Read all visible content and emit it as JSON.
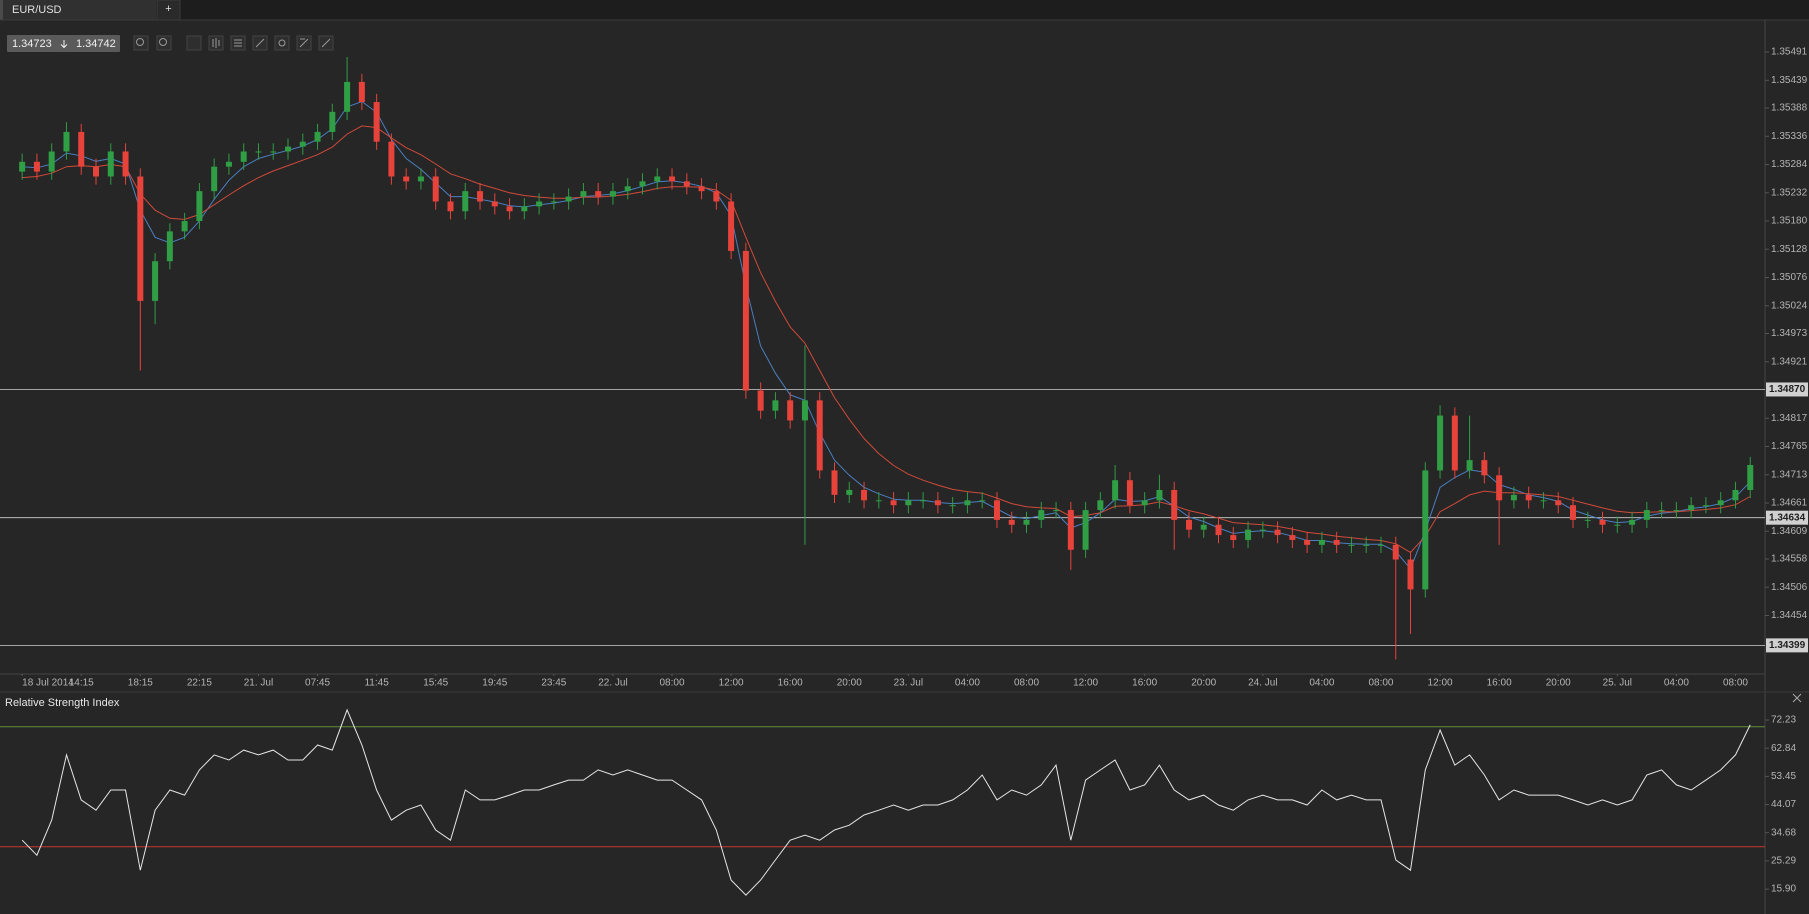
{
  "tab": {
    "symbol": "EUR/USD",
    "add": "+"
  },
  "quote": {
    "bid": "1.34723",
    "ask": "1.34742"
  },
  "chart_data": [
    {
      "type": "candlestick",
      "up_color": "#2f9e44",
      "down_color": "#e8433b",
      "xlim": [
        -1.5,
        118
      ],
      "ylim": [
        1.3435,
        1.3555
      ],
      "xticks": [
        {
          "value": 0,
          "label": "18 Jul 2014"
        },
        {
          "value": 4,
          "label": "14:15"
        },
        {
          "value": 8,
          "label": "18:15"
        },
        {
          "value": 12,
          "label": "22:15"
        },
        {
          "value": 16,
          "label": "21. Jul"
        },
        {
          "value": 20,
          "label": "07:45"
        },
        {
          "value": 24,
          "label": "11:45"
        },
        {
          "value": 28,
          "label": "15:45"
        },
        {
          "value": 32,
          "label": "19:45"
        },
        {
          "value": 36,
          "label": "23:45"
        },
        {
          "value": 40,
          "label": "22. Jul"
        },
        {
          "value": 44,
          "label": "08:00"
        },
        {
          "value": 48,
          "label": "12:00"
        },
        {
          "value": 52,
          "label": "16:00"
        },
        {
          "value": 56,
          "label": "20:00"
        },
        {
          "value": 60,
          "label": "23. Jul"
        },
        {
          "value": 64,
          "label": "04:00"
        },
        {
          "value": 68,
          "label": "08:00"
        },
        {
          "value": 72,
          "label": "12:00"
        },
        {
          "value": 76,
          "label": "16:00"
        },
        {
          "value": 80,
          "label": "20:00"
        },
        {
          "value": 84,
          "label": "24. Jul"
        },
        {
          "value": 88,
          "label": "04:00"
        },
        {
          "value": 92,
          "label": "08:00"
        },
        {
          "value": 96,
          "label": "12:00"
        },
        {
          "value": 100,
          "label": "16:00"
        },
        {
          "value": 104,
          "label": "20:00"
        },
        {
          "value": 108,
          "label": "25. Jul"
        },
        {
          "value": 112,
          "label": "04:00"
        },
        {
          "value": 116,
          "label": "08:00"
        }
      ],
      "yticks": [
        1.35491,
        1.35439,
        1.35388,
        1.35336,
        1.35284,
        1.35232,
        {
          "value": 1.3518,
          "label": "1.35180"
        },
        1.35128,
        1.35076,
        1.35024,
        1.34973,
        1.34921,
        1.34817,
        1.34765,
        1.34713,
        1.34661,
        1.34609,
        1.34558,
        1.34506,
        1.34454
      ],
      "levels": [
        {
          "value": 1.3487,
          "label": "1.34870"
        },
        1.34634,
        1.34399
      ],
      "open": [
        1.35271,
        1.35289,
        1.35271,
        1.35308,
        1.35344,
        1.3528,
        1.35262,
        1.35308,
        1.35262,
        1.35033,
        1.35106,
        1.35161,
        1.3518,
        1.35235,
        1.3528,
        1.35289,
        1.35308,
        1.35308,
        1.35308,
        1.35317,
        1.35326,
        1.35344,
        1.35381,
        1.35436,
        1.35399,
        1.35326,
        1.35262,
        1.35253,
        1.35262,
        1.35216,
        1.35198,
        1.35235,
        1.35216,
        1.35207,
        1.35198,
        1.35207,
        1.35216,
        1.35216,
        1.35225,
        1.35235,
        1.35225,
        1.35235,
        1.35244,
        1.35253,
        1.35262,
        1.35253,
        1.35244,
        1.35235,
        1.35216,
        1.35125,
        1.34868,
        1.34831,
        1.3485,
        1.34813,
        1.3485,
        1.34721,
        1.34676,
        1.34685,
        1.34666,
        1.34666,
        1.34657,
        1.34666,
        1.34666,
        1.34657,
        1.34657,
        1.34666,
        1.34666,
        1.3463,
        1.34621,
        1.3463,
        1.34648,
        1.34648,
        1.34575,
        1.34648,
        1.34666,
        1.34703,
        1.34657,
        1.34666,
        1.34685,
        1.3463,
        1.34612,
        1.34621,
        1.34602,
        1.34593,
        1.34612,
        1.34612,
        1.34602,
        1.34593,
        1.34584,
        1.34593,
        1.34584,
        1.34584,
        1.34584,
        1.34584,
        1.34557,
        1.34502,
        1.34721,
        1.34822,
        1.34721,
        1.3474,
        1.34712,
        1.34666,
        1.34676,
        1.34666,
        1.34666,
        1.34657,
        1.3463,
        1.3463,
        1.34621,
        1.34621,
        1.3463,
        1.34648,
        1.34648,
        1.34648,
        1.34657,
        1.34657,
        1.34666,
        1.34685
      ],
      "high": [
        1.35304,
        1.35304,
        1.35323,
        1.35362,
        1.35359,
        1.35295,
        1.35323,
        1.35323,
        1.35277,
        1.35121,
        1.35176,
        1.35195,
        1.3525,
        1.35295,
        1.35304,
        1.35323,
        1.35323,
        1.35323,
        1.35332,
        1.35341,
        1.35359,
        1.35396,
        1.35482,
        1.35451,
        1.35414,
        1.35341,
        1.35277,
        1.35277,
        1.35277,
        1.35231,
        1.3525,
        1.3525,
        1.35231,
        1.35222,
        1.35222,
        1.35231,
        1.35231,
        1.3524,
        1.3525,
        1.3525,
        1.3525,
        1.35259,
        1.35268,
        1.35277,
        1.35277,
        1.35268,
        1.35259,
        1.3525,
        1.35231,
        1.3514,
        1.34883,
        1.34865,
        1.34865,
        1.34951,
        1.34865,
        1.34736,
        1.347,
        1.347,
        1.34681,
        1.34681,
        1.34681,
        1.34681,
        1.34681,
        1.34672,
        1.34681,
        1.34681,
        1.34681,
        1.34645,
        1.34645,
        1.34663,
        1.34663,
        1.34663,
        1.34663,
        1.34681,
        1.34731,
        1.34718,
        1.34681,
        1.34713,
        1.347,
        1.34645,
        1.34636,
        1.34636,
        1.34617,
        1.34627,
        1.34627,
        1.34627,
        1.34617,
        1.34608,
        1.34608,
        1.34608,
        1.34599,
        1.34599,
        1.34599,
        1.34599,
        1.34572,
        1.34736,
        1.34841,
        1.34837,
        1.34822,
        1.34755,
        1.34727,
        1.34691,
        1.34691,
        1.34681,
        1.34681,
        1.34672,
        1.34645,
        1.34645,
        1.34636,
        1.34645,
        1.34663,
        1.34663,
        1.34663,
        1.34672,
        1.34672,
        1.34681,
        1.347,
        1.34746
      ],
      "low": [
        1.35256,
        1.35256,
        1.35256,
        1.35293,
        1.35265,
        1.35247,
        1.35247,
        1.35247,
        1.34905,
        1.3499,
        1.35091,
        1.35146,
        1.35165,
        1.3522,
        1.35265,
        1.35274,
        1.35293,
        1.35293,
        1.35293,
        1.35302,
        1.35311,
        1.35329,
        1.35366,
        1.35384,
        1.35311,
        1.35247,
        1.35238,
        1.35238,
        1.35201,
        1.35183,
        1.35183,
        1.35201,
        1.35192,
        1.35183,
        1.35183,
        1.35192,
        1.35201,
        1.35201,
        1.3521,
        1.3521,
        1.3521,
        1.3522,
        1.35229,
        1.35238,
        1.35238,
        1.35229,
        1.3522,
        1.35201,
        1.3511,
        1.34853,
        1.34816,
        1.34816,
        1.34798,
        1.34584,
        1.34706,
        1.34661,
        1.34661,
        1.34651,
        1.34651,
        1.34642,
        1.34642,
        1.34651,
        1.34642,
        1.34642,
        1.34642,
        1.34651,
        1.34615,
        1.34606,
        1.34606,
        1.34615,
        1.34633,
        1.34538,
        1.3456,
        1.34633,
        1.34651,
        1.34642,
        1.34642,
        1.34651,
        1.34575,
        1.34597,
        1.34597,
        1.34587,
        1.34578,
        1.34578,
        1.34597,
        1.34587,
        1.34578,
        1.34569,
        1.34569,
        1.34569,
        1.34569,
        1.34569,
        1.34569,
        1.34373,
        1.3442,
        1.34487,
        1.34706,
        1.34706,
        1.34706,
        1.34697,
        1.34584,
        1.34651,
        1.34651,
        1.34651,
        1.34642,
        1.34615,
        1.34615,
        1.34606,
        1.34606,
        1.34606,
        1.34615,
        1.34633,
        1.34633,
        1.34633,
        1.34642,
        1.34642,
        1.34651,
        1.3467
      ],
      "close": [
        1.35289,
        1.35271,
        1.35308,
        1.35344,
        1.3528,
        1.35262,
        1.35308,
        1.35262,
        1.35033,
        1.35106,
        1.35161,
        1.3518,
        1.35235,
        1.3528,
        1.35289,
        1.35308,
        1.35308,
        1.35308,
        1.35317,
        1.35326,
        1.35344,
        1.35381,
        1.35436,
        1.35399,
        1.35326,
        1.35262,
        1.35253,
        1.35262,
        1.35216,
        1.35198,
        1.35235,
        1.35216,
        1.35207,
        1.35198,
        1.35207,
        1.35216,
        1.35216,
        1.35225,
        1.35235,
        1.35225,
        1.35235,
        1.35244,
        1.35253,
        1.35262,
        1.35253,
        1.35244,
        1.35235,
        1.35216,
        1.35125,
        1.34868,
        1.34831,
        1.3485,
        1.34813,
        1.3485,
        1.34721,
        1.34676,
        1.34685,
        1.34666,
        1.34666,
        1.34657,
        1.34666,
        1.34666,
        1.34657,
        1.34657,
        1.34666,
        1.34666,
        1.3463,
        1.34621,
        1.3463,
        1.34648,
        1.34648,
        1.34575,
        1.34648,
        1.34666,
        1.34703,
        1.34657,
        1.34666,
        1.34685,
        1.3463,
        1.34612,
        1.34621,
        1.34602,
        1.34593,
        1.34612,
        1.34612,
        1.34602,
        1.34593,
        1.34584,
        1.34593,
        1.34584,
        1.34584,
        1.34584,
        1.34584,
        1.34557,
        1.34502,
        1.34721,
        1.34822,
        1.34721,
        1.3474,
        1.34712,
        1.34666,
        1.34676,
        1.34666,
        1.34666,
        1.34657,
        1.3463,
        1.3463,
        1.34621,
        1.34621,
        1.3463,
        1.34648,
        1.34648,
        1.34648,
        1.34657,
        1.34657,
        1.34666,
        1.34685,
        1.34731
      ],
      "series": [
        {
          "color": "#4a7fc1",
          "values": [
            1.3528,
            1.35278,
            1.35285,
            1.35305,
            1.353,
            1.3529,
            1.35295,
            1.35285,
            1.352,
            1.3515,
            1.3514,
            1.3515,
            1.3518,
            1.3522,
            1.35255,
            1.3528,
            1.35295,
            1.35303,
            1.3531,
            1.35318,
            1.3533,
            1.3535,
            1.3539,
            1.354,
            1.3538,
            1.3533,
            1.35295,
            1.35275,
            1.3525,
            1.35225,
            1.35225,
            1.3522,
            1.35215,
            1.35208,
            1.35206,
            1.3521,
            1.35213,
            1.35218,
            1.35225,
            1.35227,
            1.3523,
            1.35236,
            1.35244,
            1.35252,
            1.35254,
            1.3525,
            1.35244,
            1.35232,
            1.3519,
            1.3506,
            1.3495,
            1.349,
            1.3486,
            1.3485,
            1.3479,
            1.3474,
            1.34712,
            1.3469,
            1.34678,
            1.34668,
            1.34666,
            1.34666,
            1.34662,
            1.3466,
            1.34662,
            1.34664,
            1.3465,
            1.34636,
            1.34632,
            1.34638,
            1.34643,
            1.34615,
            1.34625,
            1.34643,
            1.34668,
            1.34664,
            1.34665,
            1.34673,
            1.34655,
            1.34635,
            1.34627,
            1.34615,
            1.34605,
            1.34608,
            1.3461,
            1.34607,
            1.346,
            1.34592,
            1.34592,
            1.34588,
            1.34586,
            1.34585,
            1.34585,
            1.34572,
            1.3454,
            1.3461,
            1.3469,
            1.34708,
            1.34722,
            1.34718,
            1.34695,
            1.34686,
            1.34676,
            1.34671,
            1.34664,
            1.34648,
            1.34639,
            1.3463,
            1.34625,
            1.34627,
            1.34637,
            1.34642,
            1.34645,
            1.34651,
            1.34654,
            1.3466,
            1.34672,
            1.347
          ]
        },
        {
          "color": "#d04a3a",
          "values": [
            1.3526,
            1.35262,
            1.35268,
            1.3528,
            1.35282,
            1.3528,
            1.35284,
            1.3528,
            1.3523,
            1.352,
            1.35185,
            1.35183,
            1.35192,
            1.3521,
            1.35228,
            1.35245,
            1.3526,
            1.35272,
            1.35282,
            1.35292,
            1.35302,
            1.35316,
            1.3534,
            1.35355,
            1.35352,
            1.35333,
            1.35315,
            1.35302,
            1.35285,
            1.35267,
            1.35258,
            1.35248,
            1.3524,
            1.35232,
            1.35227,
            1.35224,
            1.35222,
            1.35222,
            1.35224,
            1.35224,
            1.35226,
            1.35229,
            1.35234,
            1.3524,
            1.35243,
            1.35243,
            1.35242,
            1.35237,
            1.35218,
            1.3515,
            1.35085,
            1.35032,
            1.34985,
            1.34955,
            1.34905,
            1.34855,
            1.34815,
            1.3478,
            1.34752,
            1.3473,
            1.34714,
            1.34703,
            1.34694,
            1.34686,
            1.34682,
            1.34679,
            1.3467,
            1.3466,
            1.34654,
            1.34652,
            1.34651,
            1.34636,
            1.34638,
            1.34643,
            1.34655,
            1.34656,
            1.34658,
            1.34663,
            1.34656,
            1.34647,
            1.34641,
            1.34633,
            1.34625,
            1.34623,
            1.34621,
            1.34618,
            1.34613,
            1.34607,
            1.34604,
            1.346,
            1.34597,
            1.34594,
            1.34592,
            1.34586,
            1.3457,
            1.346,
            1.34645,
            1.3466,
            1.34676,
            1.34683,
            1.3468,
            1.3468,
            1.34678,
            1.34676,
            1.34673,
            1.34666,
            1.34659,
            1.34652,
            1.34646,
            1.34643,
            1.34644,
            1.34645,
            1.34645,
            1.34647,
            1.34649,
            1.34652,
            1.34658,
            1.34673
          ]
        }
      ]
    },
    {
      "type": "line",
      "title": "Relative Strength Index",
      "color": "#e6e6e6",
      "xlim": [
        -1.5,
        118
      ],
      "ylim": [
        7.6,
        79.9
      ],
      "yticks": [
        72.23,
        62.84,
        53.45,
        44.07,
        34.68,
        25.29,
        {
          "value": 15.9,
          "label": "15.90"
        }
      ],
      "levels": [
        {
          "value": 70,
          "color": "#5f8f3c"
        },
        {
          "value": 30,
          "color": "#c8372d"
        }
      ],
      "values": [
        32.2,
        27.2,
        38.9,
        60.6,
        45.6,
        42.2,
        48.9,
        48.9,
        22.2,
        42.2,
        48.9,
        47.2,
        55.6,
        60.6,
        58.9,
        62.2,
        60.6,
        62.2,
        58.9,
        58.9,
        63.9,
        62.2,
        75.6,
        63.9,
        48.9,
        38.9,
        42.2,
        43.9,
        35.6,
        32.2,
        48.9,
        45.6,
        45.6,
        47.2,
        48.9,
        48.9,
        50.6,
        52.2,
        52.2,
        55.6,
        53.9,
        55.6,
        53.9,
        52.2,
        52.2,
        48.9,
        45.6,
        35.6,
        18.9,
        13.9,
        18.9,
        25.6,
        32.2,
        33.9,
        32.2,
        35.6,
        37.2,
        40.6,
        42.2,
        43.9,
        42.2,
        43.9,
        43.9,
        45.6,
        48.9,
        53.9,
        45.6,
        48.9,
        47.2,
        50.6,
        57.2,
        32.2,
        52.2,
        55.6,
        58.9,
        48.9,
        50.6,
        57.2,
        48.9,
        45.6,
        47.2,
        43.9,
        42.2,
        45.6,
        47.2,
        45.6,
        45.6,
        43.9,
        48.9,
        45.6,
        47.2,
        45.6,
        45.6,
        25.6,
        22.2,
        55.6,
        68.9,
        57.2,
        60.6,
        53.9,
        45.6,
        48.9,
        47.2,
        47.2,
        47.2,
        45.6,
        43.9,
        45.6,
        43.9,
        45.6,
        53.9,
        55.6,
        50.6,
        48.9,
        52.2,
        55.6,
        60.6,
        70.6
      ]
    }
  ]
}
